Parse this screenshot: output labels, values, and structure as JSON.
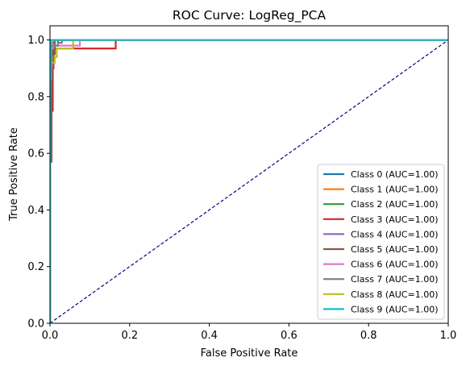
{
  "chart_data": {
    "type": "line",
    "title": "ROC Curve: LogReg_PCA",
    "xlabel": "False Positive Rate",
    "ylabel": "True Positive Rate",
    "xlim": [
      0.0,
      1.0
    ],
    "ylim": [
      0.0,
      1.05
    ],
    "xticks": [
      "0.0",
      "0.2",
      "0.4",
      "0.6",
      "0.8",
      "1.0"
    ],
    "yticks": [
      "0.0",
      "0.2",
      "0.4",
      "0.6",
      "0.8",
      "1.0"
    ],
    "xtick_values": [
      0.0,
      0.2,
      0.4,
      0.6,
      0.8,
      1.0
    ],
    "ytick_values": [
      0.0,
      0.2,
      0.4,
      0.6,
      0.8,
      1.0
    ],
    "grid": false,
    "legend_position": "bottom-right",
    "diagonal": {
      "color": "#000080",
      "style": "dashed",
      "points": [
        [
          0,
          0
        ],
        [
          1,
          1
        ]
      ]
    },
    "series": [
      {
        "name": "Class 0 (AUC=1.00)",
        "color": "#1f77b4",
        "points": [
          [
            0,
            0
          ],
          [
            0,
            0.88
          ],
          [
            0.002,
            0.88
          ],
          [
            0.002,
            1.0
          ],
          [
            1,
            1
          ]
        ]
      },
      {
        "name": "Class 1 (AUC=1.00)",
        "color": "#ff7f0e",
        "points": [
          [
            0,
            0
          ],
          [
            0,
            0.93
          ],
          [
            0.004,
            0.93
          ],
          [
            0.004,
            0.98
          ],
          [
            0.009,
            0.98
          ],
          [
            0.009,
            1.0
          ],
          [
            1,
            1
          ]
        ]
      },
      {
        "name": "Class 2 (AUC=1.00)",
        "color": "#2ca02c",
        "points": [
          [
            0,
            0
          ],
          [
            0,
            0.95
          ],
          [
            0.006,
            0.95
          ],
          [
            0.006,
            0.98
          ],
          [
            0.02,
            0.98
          ],
          [
            0.02,
            1.0
          ],
          [
            1,
            1
          ]
        ]
      },
      {
        "name": "Class 3 (AUC=1.00)",
        "color": "#d62728",
        "points": [
          [
            0,
            0
          ],
          [
            0,
            0.75
          ],
          [
            0.007,
            0.75
          ],
          [
            0.007,
            0.9
          ],
          [
            0.009,
            0.9
          ],
          [
            0.009,
            0.97
          ],
          [
            0.165,
            0.97
          ],
          [
            0.165,
            1.0
          ],
          [
            1,
            1
          ]
        ]
      },
      {
        "name": "Class 4 (AUC=1.00)",
        "color": "#9467bd",
        "points": [
          [
            0,
            0
          ],
          [
            0,
            0.96
          ],
          [
            0.003,
            0.96
          ],
          [
            0.003,
            0.99
          ],
          [
            0.012,
            0.99
          ],
          [
            0.012,
            1.0
          ],
          [
            1,
            1
          ]
        ]
      },
      {
        "name": "Class 5 (AUC=1.00)",
        "color": "#8c564b",
        "points": [
          [
            0,
            0
          ],
          [
            0,
            0.57
          ],
          [
            0.004,
            0.57
          ],
          [
            0.004,
            0.95
          ],
          [
            0.012,
            0.95
          ],
          [
            0.012,
            1.0
          ],
          [
            1,
            1
          ]
        ]
      },
      {
        "name": "Class 6 (AUC=1.00)",
        "color": "#e377c2",
        "points": [
          [
            0,
            0
          ],
          [
            0,
            0.97
          ],
          [
            0.008,
            0.97
          ],
          [
            0.008,
            0.98
          ],
          [
            0.075,
            0.98
          ],
          [
            0.075,
            1.0
          ],
          [
            1,
            1
          ]
        ]
      },
      {
        "name": "Class 7 (AUC=1.00)",
        "color": "#7f7f7f",
        "points": [
          [
            0,
            0
          ],
          [
            0,
            0.98
          ],
          [
            0.02,
            0.98
          ],
          [
            0.02,
            0.99
          ],
          [
            0.03,
            0.99
          ],
          [
            0.03,
            1.0
          ],
          [
            1,
            1
          ]
        ]
      },
      {
        "name": "Class 8 (AUC=1.00)",
        "color": "#bcbd22",
        "points": [
          [
            0,
            0
          ],
          [
            0,
            0.92
          ],
          [
            0.012,
            0.92
          ],
          [
            0.012,
            0.94
          ],
          [
            0.017,
            0.94
          ],
          [
            0.017,
            0.97
          ],
          [
            0.058,
            0.97
          ],
          [
            0.058,
            1.0
          ],
          [
            1,
            1
          ]
        ]
      },
      {
        "name": "Class 9 (AUC=1.00)",
        "color": "#17becf",
        "points": [
          [
            0,
            0
          ],
          [
            0,
            0.86
          ],
          [
            0.003,
            0.86
          ],
          [
            0.003,
            1.0
          ],
          [
            1,
            1
          ]
        ]
      }
    ]
  }
}
